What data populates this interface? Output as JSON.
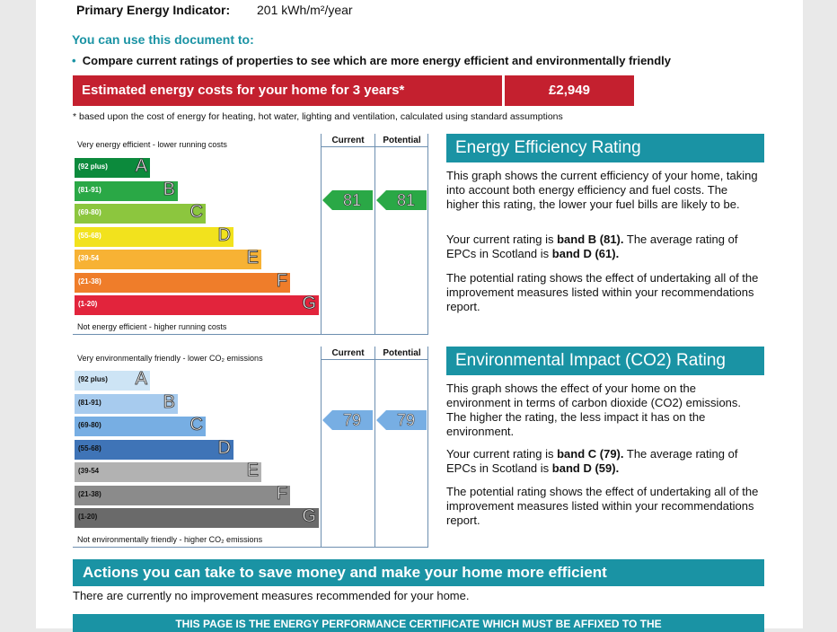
{
  "top": {
    "pei_label": "Primary Energy Indicator:",
    "pei_value": "201 kWh/m²/year"
  },
  "use": {
    "heading": "You can use this document to:",
    "bullet": "Compare current ratings of properties to see which are more energy efficient and environmentally friendly"
  },
  "costs": {
    "label": "Estimated energy costs for your home for 3 years*",
    "value": "£2,949",
    "footnote": "* based upon the cost of energy for heating, hot water, lighting and ventilation, calculated using standard assumptions"
  },
  "ee_chart": {
    "top_label": "Very energy efficient - lower running costs",
    "bottom_label": "Not energy efficient - higher running costs",
    "col_current": "Current",
    "col_potential": "Potential",
    "current": "81",
    "potential": "81",
    "bands": [
      {
        "range": "(92 plus)",
        "letter": "A",
        "color": "#0c8a3c"
      },
      {
        "range": "(81-91)",
        "letter": "B",
        "color": "#2aa846"
      },
      {
        "range": "(69-80)",
        "letter": "C",
        "color": "#8cc63e"
      },
      {
        "range": "(55-68)",
        "letter": "D",
        "color": "#f2e21d"
      },
      {
        "range": "(39-54",
        "letter": "E",
        "color": "#f7b234"
      },
      {
        "range": "(21-38)",
        "letter": "F",
        "color": "#ef7d2a"
      },
      {
        "range": "(1-20)",
        "letter": "G",
        "color": "#e2243c"
      }
    ]
  },
  "ee_text": {
    "title": "Energy Efficiency Rating",
    "p1": "This graph shows the current efficiency of your home, taking into account both energy efficiency and fuel costs. The higher this rating, the lower your fuel bills are likely to be.",
    "p2a": "Your current rating is ",
    "p2b": "band B (81).",
    "p2c": " The average rating of EPCs in Scotland is ",
    "p2d": "band D (61).",
    "p3": "The potential rating shows the effect of undertaking all of the improvement measures listed within your recommendations report."
  },
  "ei_chart": {
    "top_label": "Very environmentally friendly - lower CO₂ emissions",
    "bottom_label": "Not environmentally friendly - higher CO₂ emissions",
    "col_current": "Current",
    "col_potential": "Potential",
    "current": "79",
    "potential": "79",
    "bands": [
      {
        "range": "(92 plus)",
        "letter": "A",
        "color": "#cde4f5"
      },
      {
        "range": "(81-91)",
        "letter": "B",
        "color": "#a7cbee"
      },
      {
        "range": "(69-80)",
        "letter": "C",
        "color": "#77aee3"
      },
      {
        "range": "(55-68)",
        "letter": "D",
        "color": "#3f74b7"
      },
      {
        "range": "(39-54",
        "letter": "E",
        "color": "#b2b2b2"
      },
      {
        "range": "(21-38)",
        "letter": "F",
        "color": "#8b8b8b"
      },
      {
        "range": "(1-20)",
        "letter": "G",
        "color": "#6a6a6a"
      }
    ]
  },
  "ei_text": {
    "title": "Environmental Impact (CO2) Rating",
    "p1": "This graph shows the effect of your home on the environment in terms of carbon dioxide (CO2) emissions. The higher the rating, the less impact it has on the environment.",
    "p2a": "Your current rating is ",
    "p2b": "band C (79).",
    "p2c": " The average rating of EPCs in Scotland is ",
    "p2d": "band D (59).",
    "p3": "The potential rating shows the effect of undertaking all of the improvement measures listed within your recommendations report."
  },
  "actions": {
    "title": "Actions you can take to save money and make your home more efficient",
    "text": "There are currently no improvement measures recommended for your home."
  },
  "footer": {
    "text": "THIS PAGE IS THE ENERGY PERFORMANCE CERTIFICATE WHICH MUST BE AFFIXED TO THE"
  }
}
